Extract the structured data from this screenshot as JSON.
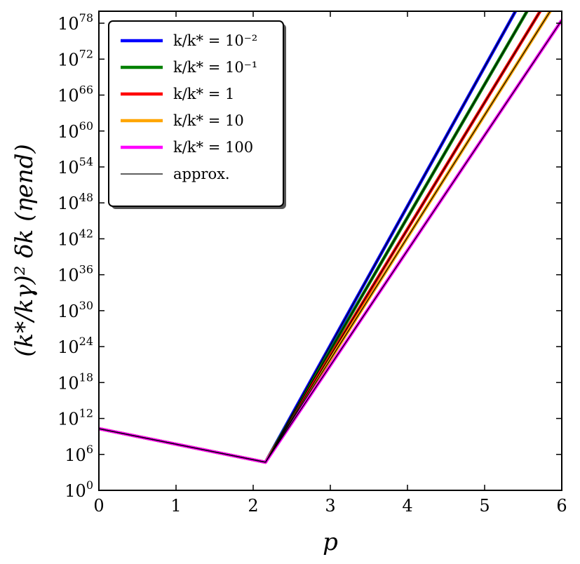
{
  "chart_data": {
    "type": "line",
    "xlabel": "p",
    "ylabel": "(k*/kγ)² δk (ηend)",
    "x_ticks": [
      "0",
      "1",
      "2",
      "3",
      "4",
      "5",
      "6"
    ],
    "y_tick_exponents": [
      "0",
      "6",
      "12",
      "18",
      "24",
      "30",
      "36",
      "42",
      "48",
      "54",
      "60",
      "66",
      "72",
      "78"
    ],
    "y_tick_base": "10",
    "xlim": [
      0,
      6
    ],
    "ylim_log10": [
      0,
      80
    ],
    "y_scale": "log",
    "grid": false,
    "legend_position": "top-left",
    "series": [
      {
        "name": "k/k* = 10⁻²",
        "color": "#0000ff",
        "points": [
          [
            0,
            10.3
          ],
          [
            2.16,
            4.7
          ],
          [
            5.4,
            80
          ]
        ]
      },
      {
        "name": "k/k* = 10⁻¹",
        "color": "#008000",
        "points": [
          [
            0,
            10.3
          ],
          [
            2.16,
            4.7
          ],
          [
            5.55,
            80
          ]
        ]
      },
      {
        "name": "k/k* = 1",
        "color": "#ff0000",
        "points": [
          [
            0,
            10.3
          ],
          [
            2.16,
            4.7
          ],
          [
            5.72,
            80
          ]
        ]
      },
      {
        "name": "k/k* = 10",
        "color": "#ffa500",
        "points": [
          [
            0,
            10.3
          ],
          [
            2.16,
            4.7
          ],
          [
            5.85,
            80
          ]
        ]
      },
      {
        "name": "k/k* = 100",
        "color": "#ff00ff",
        "points": [
          [
            0,
            10.3
          ],
          [
            2.16,
            4.7
          ],
          [
            6.0,
            78.5
          ]
        ]
      }
    ],
    "approx": {
      "name": "approx.",
      "color": "#000000",
      "lines": [
        [
          [
            0,
            10.3
          ],
          [
            2.16,
            4.7
          ],
          [
            5.4,
            80
          ]
        ],
        [
          [
            0,
            10.3
          ],
          [
            2.16,
            4.7
          ],
          [
            5.55,
            80
          ]
        ],
        [
          [
            0,
            10.3
          ],
          [
            2.16,
            4.7
          ],
          [
            5.72,
            80
          ]
        ],
        [
          [
            0,
            10.3
          ],
          [
            2.16,
            4.7
          ],
          [
            5.85,
            80
          ]
        ],
        [
          [
            0,
            10.3
          ],
          [
            2.16,
            4.7
          ],
          [
            6.0,
            78.5
          ]
        ]
      ]
    }
  }
}
